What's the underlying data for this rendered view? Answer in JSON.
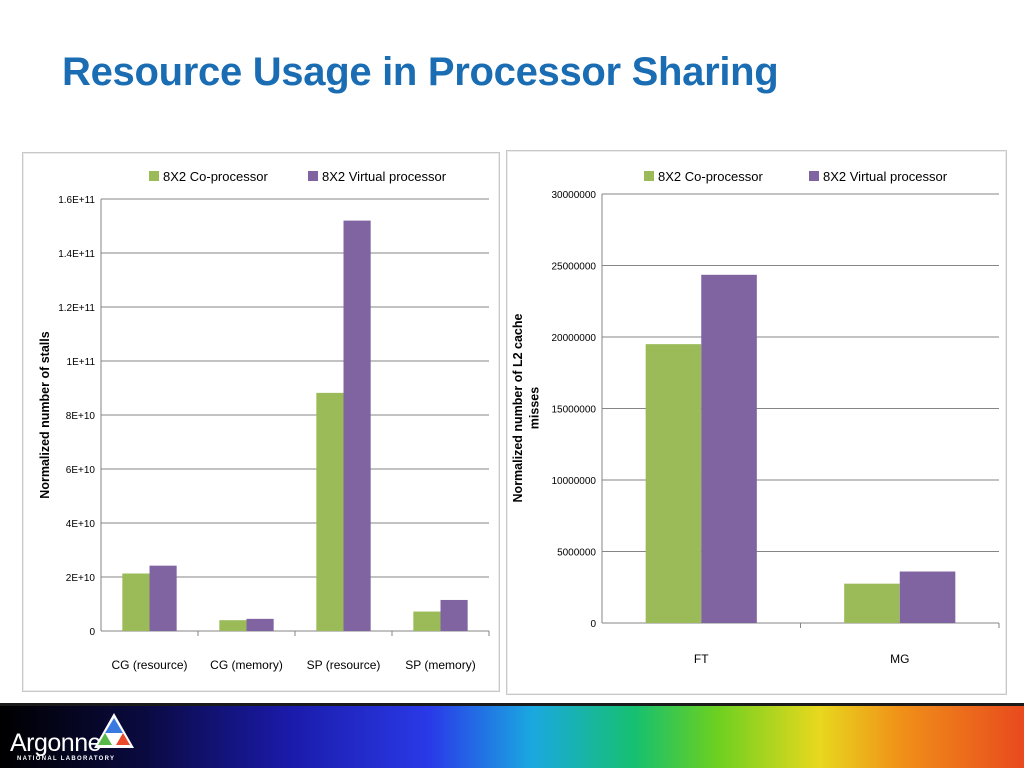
{
  "slide": {
    "title": "Resource Usage in Processor Sharing"
  },
  "footer": {
    "logo_word": "Argonne",
    "logo_sub": "NATIONAL LABORATORY"
  },
  "colors": {
    "title": "#1a6db3",
    "series_green": "#9bbb59",
    "series_purple": "#8064a2",
    "gridline": "#868686"
  },
  "chart_data": [
    {
      "type": "bar",
      "title": "",
      "xlabel": "",
      "ylabel": "Normalized number of stalls",
      "categories": [
        "CG (resource)",
        "CG (memory)",
        "SP (resource)",
        "SP (memory)"
      ],
      "series": [
        {
          "name": "8X2 Co-processor",
          "color": "#9bbb59",
          "values": [
            21300000000,
            4000000000,
            88200000000,
            7200000000
          ]
        },
        {
          "name": "8X2 Virtual processor",
          "color": "#8064a2",
          "values": [
            24200000000,
            4500000000,
            152000000000,
            11500000000
          ]
        }
      ],
      "ylim": [
        0,
        160000000000
      ],
      "yticks": [
        0,
        20000000000,
        40000000000,
        60000000000,
        80000000000,
        100000000000,
        120000000000,
        140000000000,
        160000000000
      ],
      "ytick_labels": [
        "0",
        "2E+10",
        "4E+10",
        "6E+10",
        "8E+10",
        "1E+11",
        "1.2E+11",
        "1.4E+11",
        "1.6E+11"
      ],
      "grid": true,
      "legend": "top"
    },
    {
      "type": "bar",
      "title": "",
      "xlabel": "",
      "ylabel": "Normalized number of L2 cache misses",
      "categories": [
        "FT",
        "MG"
      ],
      "series": [
        {
          "name": "8X2 Co-processor",
          "color": "#9bbb59",
          "values": [
            19500000,
            2750000
          ]
        },
        {
          "name": "8X2 Virtual processor",
          "color": "#8064a2",
          "values": [
            24350000,
            3600000
          ]
        }
      ],
      "ylim": [
        0,
        30000000
      ],
      "yticks": [
        0,
        5000000,
        10000000,
        15000000,
        20000000,
        25000000,
        30000000
      ],
      "ytick_labels": [
        "0",
        "5000000",
        "10000000",
        "15000000",
        "20000000",
        "25000000",
        "30000000"
      ],
      "grid": true,
      "legend": "top"
    }
  ]
}
